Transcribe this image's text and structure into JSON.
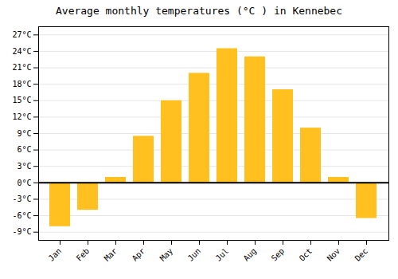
{
  "chart_data": {
    "type": "bar",
    "title": "Average monthly temperatures (°C ) in Kennebec",
    "categories": [
      "Jan",
      "Feb",
      "Mar",
      "Apr",
      "May",
      "Jun",
      "Jul",
      "Aug",
      "Sep",
      "Oct",
      "Nov",
      "Dec"
    ],
    "values": [
      -8.0,
      -5.0,
      1.0,
      8.5,
      15.0,
      20.0,
      24.5,
      23.0,
      17.0,
      10.0,
      1.0,
      -6.5
    ],
    "color": "#FFC020",
    "ylim": [
      -10.5,
      28.5
    ],
    "yticks": [
      {
        "value": -9,
        "label": "-9°C"
      },
      {
        "value": -6,
        "label": "-6°C"
      },
      {
        "value": -3,
        "label": "-3°C"
      },
      {
        "value": 0,
        "label": "0°C"
      },
      {
        "value": 3,
        "label": "3°C"
      },
      {
        "value": 6,
        "label": "6°C"
      },
      {
        "value": 9,
        "label": "9°C"
      },
      {
        "value": 12,
        "label": "12°C"
      },
      {
        "value": 15,
        "label": "15°C"
      },
      {
        "value": 18,
        "label": "18°C"
      },
      {
        "value": 21,
        "label": "21°C"
      },
      {
        "value": 24,
        "label": "24°C"
      },
      {
        "value": 27,
        "label": "27°C"
      }
    ],
    "grid": true
  }
}
